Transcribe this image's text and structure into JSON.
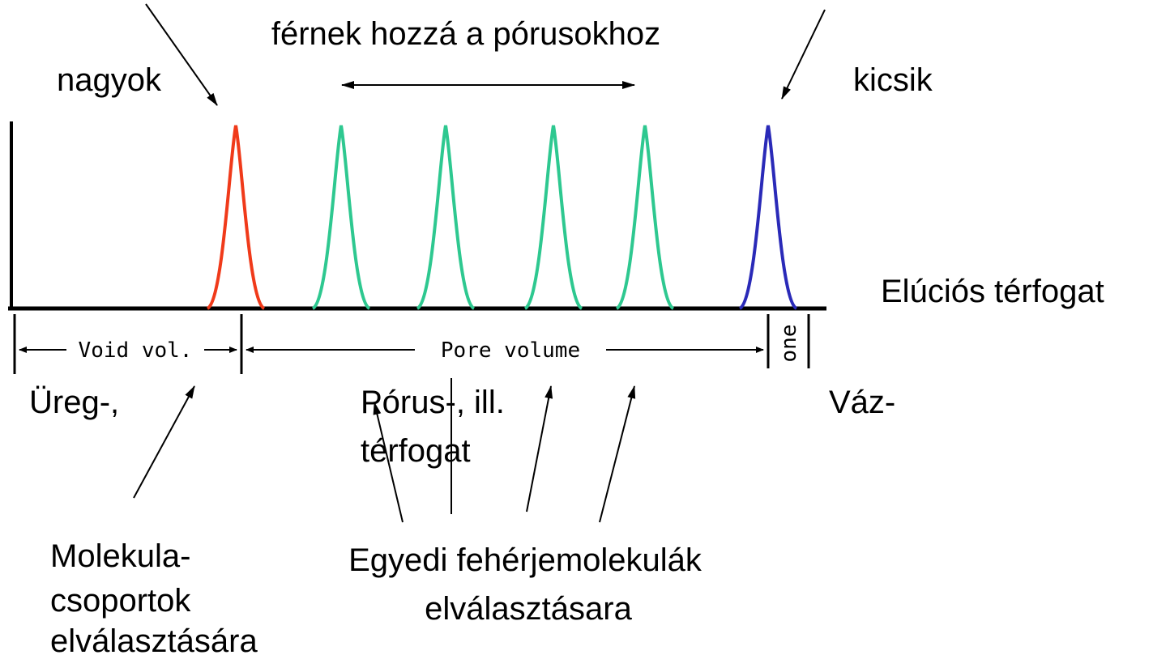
{
  "header": {
    "subtitle": "férnek hozzá a pórusokhoz"
  },
  "labels": {
    "large": "nagyok",
    "small": "kicsik",
    "elution_volume": "Elúciós térfogat"
  },
  "axis": {
    "void": "Void vol.",
    "pore": "Pore volume",
    "bone": "one"
  },
  "volumes": {
    "void": "Üreg-,",
    "pore": [
      "Pórus-, ill.",
      "térfogat"
    ],
    "matrix": "Váz-"
  },
  "notes": {
    "groups": [
      "Molekula-",
      "csoportok",
      "elválasztására"
    ],
    "individual": [
      "Egyedi fehérjemolekulák",
      "elválasztásara"
    ]
  }
}
